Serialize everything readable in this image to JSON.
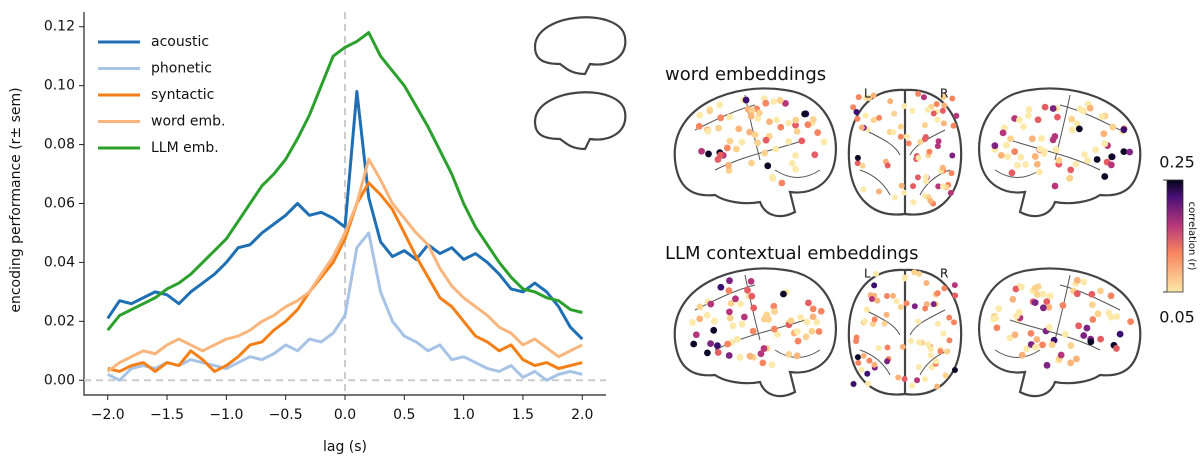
{
  "chart_data": {
    "type": "line",
    "xlabel": "lag (s)",
    "ylabel": "encoding performance (r± sem)",
    "x": [
      -2.0,
      -1.9,
      -1.8,
      -1.7,
      -1.6,
      -1.5,
      -1.4,
      -1.3,
      -1.2,
      -1.1,
      -1.0,
      -0.9,
      -0.8,
      -0.7,
      -0.6,
      -0.5,
      -0.4,
      -0.3,
      -0.2,
      -0.1,
      0.0,
      0.1,
      0.2,
      0.3,
      0.4,
      0.5,
      0.6,
      0.7,
      0.8,
      0.9,
      1.0,
      1.1,
      1.2,
      1.3,
      1.4,
      1.5,
      1.6,
      1.7,
      1.8,
      1.9,
      2.0
    ],
    "series": [
      {
        "name": "acoustic",
        "color": "#1f6fb4",
        "values": [
          0.021,
          0.027,
          0.026,
          0.028,
          0.03,
          0.029,
          0.026,
          0.03,
          0.033,
          0.036,
          0.04,
          0.045,
          0.046,
          0.05,
          0.053,
          0.056,
          0.06,
          0.056,
          0.057,
          0.055,
          0.052,
          0.098,
          0.062,
          0.047,
          0.042,
          0.044,
          0.041,
          0.046,
          0.043,
          0.045,
          0.041,
          0.043,
          0.04,
          0.036,
          0.031,
          0.03,
          0.033,
          0.03,
          0.025,
          0.018,
          0.014
        ]
      },
      {
        "name": "phonetic",
        "color": "#a7c3e6",
        "values": [
          0.002,
          0.0,
          0.004,
          0.005,
          0.004,
          0.006,
          0.005,
          0.007,
          0.006,
          0.005,
          0.004,
          0.006,
          0.008,
          0.007,
          0.009,
          0.012,
          0.01,
          0.014,
          0.013,
          0.016,
          0.022,
          0.045,
          0.05,
          0.03,
          0.02,
          0.015,
          0.013,
          0.01,
          0.012,
          0.007,
          0.008,
          0.006,
          0.004,
          0.003,
          0.005,
          0.001,
          0.003,
          0.0,
          0.002,
          0.003,
          0.002
        ]
      },
      {
        "name": "syntactic",
        "color": "#f57f17",
        "values": [
          0.004,
          0.003,
          0.005,
          0.006,
          0.003,
          0.006,
          0.005,
          0.01,
          0.007,
          0.003,
          0.005,
          0.008,
          0.012,
          0.013,
          0.017,
          0.02,
          0.024,
          0.03,
          0.035,
          0.04,
          0.048,
          0.06,
          0.067,
          0.063,
          0.058,
          0.05,
          0.042,
          0.035,
          0.028,
          0.025,
          0.02,
          0.015,
          0.013,
          0.01,
          0.012,
          0.007,
          0.005,
          0.006,
          0.004,
          0.005,
          0.006
        ]
      },
      {
        "name": "word emb.",
        "color": "#f9b57c",
        "values": [
          0.003,
          0.006,
          0.008,
          0.01,
          0.009,
          0.012,
          0.014,
          0.012,
          0.01,
          0.012,
          0.014,
          0.015,
          0.017,
          0.02,
          0.022,
          0.025,
          0.027,
          0.03,
          0.036,
          0.042,
          0.05,
          0.06,
          0.075,
          0.068,
          0.06,
          0.055,
          0.05,
          0.046,
          0.038,
          0.032,
          0.028,
          0.025,
          0.022,
          0.018,
          0.016,
          0.012,
          0.014,
          0.011,
          0.008,
          0.01,
          0.012
        ]
      },
      {
        "name": "LLM emb.",
        "color": "#2ca02c",
        "values": [
          0.017,
          0.022,
          0.024,
          0.026,
          0.028,
          0.031,
          0.033,
          0.036,
          0.04,
          0.044,
          0.048,
          0.054,
          0.06,
          0.066,
          0.07,
          0.075,
          0.082,
          0.09,
          0.1,
          0.11,
          0.113,
          0.115,
          0.118,
          0.11,
          0.105,
          0.1,
          0.093,
          0.086,
          0.078,
          0.07,
          0.06,
          0.052,
          0.046,
          0.04,
          0.035,
          0.031,
          0.03,
          0.028,
          0.027,
          0.024,
          0.023
        ]
      }
    ],
    "xlim": [
      -2.2,
      2.2
    ],
    "ylim": [
      -0.005,
      0.125
    ],
    "xticks": [
      {
        "value": -2,
        "label": "−2.0"
      },
      {
        "value": -1.5,
        "label": "−1.5"
      },
      {
        "value": -1,
        "label": "−1.0"
      },
      {
        "value": -0.5,
        "label": "−0.5"
      },
      {
        "value": 0,
        "label": "0.0"
      },
      0.5,
      {
        "value": 1,
        "label": "1.0"
      },
      1.5,
      {
        "value": 2,
        "label": "2.0"
      }
    ],
    "yticks": [
      {
        "value": 0,
        "label": "0.00"
      },
      0.02,
      0.04,
      0.06,
      0.08,
      {
        "value": 0.1,
        "label": "0.10"
      },
      0.12
    ],
    "legend": "upper left"
  },
  "brain_panels": {
    "titles": [
      "word embeddings",
      "LLM contextual embeddings"
    ],
    "hemisphere_labels": [
      "L",
      "R"
    ],
    "colorbar": {
      "label": "correlation (r)",
      "ticks": [
        0.25,
        0.05
      ]
    }
  }
}
